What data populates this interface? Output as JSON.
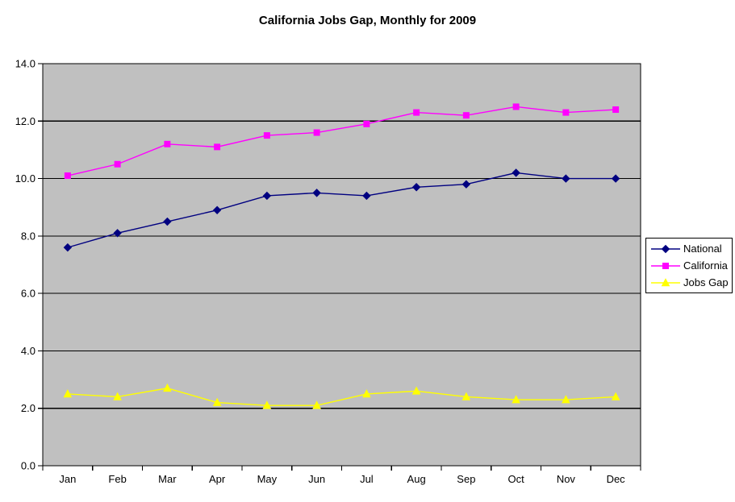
{
  "page": {
    "background": "#FFFFFF",
    "text_color": "#000000"
  },
  "chart_data": {
    "type": "line",
    "title": "California Jobs Gap, Monthly for 2009",
    "categories": [
      "Jan",
      "Feb",
      "Mar",
      "Apr",
      "May",
      "Jun",
      "Jul",
      "Aug",
      "Sep",
      "Oct",
      "Nov",
      "Dec"
    ],
    "series": [
      {
        "name": "National",
        "color": "#000080",
        "marker": "diamond",
        "values": [
          7.6,
          8.1,
          8.5,
          8.9,
          9.4,
          9.5,
          9.4,
          9.7,
          9.8,
          10.2,
          10.0,
          10.0
        ]
      },
      {
        "name": "California",
        "color": "#FF00FF",
        "marker": "square",
        "values": [
          10.1,
          10.5,
          11.2,
          11.1,
          11.5,
          11.6,
          11.9,
          12.3,
          12.2,
          12.5,
          12.3,
          12.4
        ]
      },
      {
        "name": "Jobs Gap",
        "color": "#FFFF00",
        "marker": "triangle",
        "values": [
          2.5,
          2.4,
          2.7,
          2.2,
          2.1,
          2.1,
          2.5,
          2.6,
          2.4,
          2.3,
          2.3,
          2.4
        ]
      }
    ],
    "xlabel": "",
    "ylabel": "",
    "ylim": [
      0,
      14
    ],
    "ytick_step": 2,
    "ytick_labels": [
      "0.0",
      "2.0",
      "4.0",
      "6.0",
      "8.0",
      "10.0",
      "12.0",
      "14.0"
    ],
    "grid": true,
    "gridline_color": "#000000",
    "plot_bg": "#C0C0C0",
    "axis_color": "#000000",
    "legend_position": "right"
  }
}
